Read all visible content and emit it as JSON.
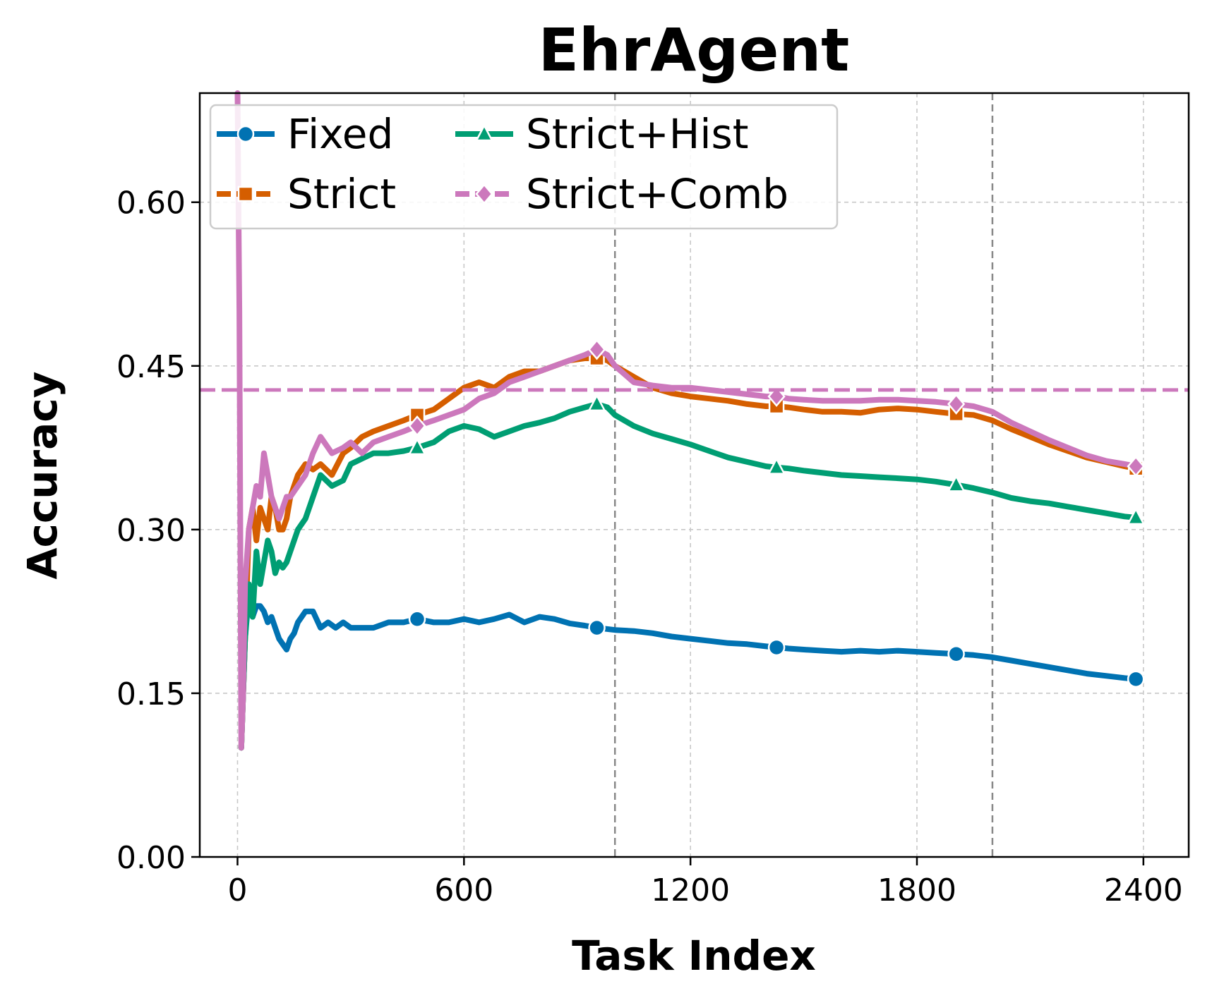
{
  "chart_data": {
    "type": "line",
    "title": "EhrAgent",
    "xlabel": "Task Index",
    "ylabel": "Accuracy",
    "xlim": [
      -100,
      2520
    ],
    "ylim": [
      0,
      0.7
    ],
    "xticks": [
      0,
      600,
      1200,
      1800,
      2400
    ],
    "xtick_labels": [
      "0",
      "600",
      "1200",
      "1800",
      "2400"
    ],
    "yticks": [
      0.0,
      0.15,
      0.3,
      0.45,
      0.6
    ],
    "ytick_labels": [
      "0.00",
      "0.15",
      "0.30",
      "0.45",
      "0.60"
    ],
    "grid": true,
    "vertical_markers": [
      1000,
      2000
    ],
    "reference_line": {
      "y": 0.428,
      "color": "#CC78BC",
      "style": "dashed"
    },
    "legend_position": "top-left",
    "series": [
      {
        "name": "Fixed",
        "color": "#0072B2",
        "marker": "circle",
        "marker_x": [
          476,
          952,
          1428,
          1904,
          2380
        ],
        "x": [
          10,
          20,
          30,
          40,
          50,
          60,
          70,
          80,
          90,
          100,
          110,
          120,
          130,
          140,
          150,
          160,
          170,
          180,
          200,
          220,
          240,
          260,
          280,
          300,
          330,
          360,
          400,
          440,
          476,
          520,
          560,
          600,
          640,
          680,
          720,
          760,
          800,
          840,
          880,
          920,
          952,
          1000,
          1050,
          1100,
          1150,
          1200,
          1250,
          1300,
          1350,
          1400,
          1428,
          1460,
          1500,
          1550,
          1600,
          1650,
          1700,
          1750,
          1800,
          1850,
          1904,
          1950,
          2000,
          2050,
          2100,
          2150,
          2200,
          2250,
          2300,
          2350,
          2380
        ],
        "y": [
          0.1,
          0.2,
          0.24,
          0.22,
          0.23,
          0.23,
          0.225,
          0.215,
          0.22,
          0.21,
          0.2,
          0.195,
          0.19,
          0.2,
          0.205,
          0.215,
          0.22,
          0.225,
          0.225,
          0.21,
          0.215,
          0.21,
          0.215,
          0.21,
          0.21,
          0.21,
          0.215,
          0.215,
          0.218,
          0.215,
          0.215,
          0.218,
          0.215,
          0.218,
          0.222,
          0.215,
          0.22,
          0.218,
          0.214,
          0.212,
          0.21,
          0.208,
          0.207,
          0.205,
          0.202,
          0.2,
          0.198,
          0.196,
          0.195,
          0.193,
          0.192,
          0.191,
          0.19,
          0.189,
          0.188,
          0.189,
          0.188,
          0.189,
          0.188,
          0.187,
          0.186,
          0.185,
          0.183,
          0.18,
          0.177,
          0.174,
          0.171,
          0.168,
          0.166,
          0.164,
          0.163
        ]
      },
      {
        "name": "Strict",
        "color": "#D55E00",
        "marker": "square",
        "marker_x": [
          476,
          952,
          1428,
          1904,
          2380
        ],
        "x": [
          10,
          20,
          30,
          40,
          50,
          60,
          70,
          80,
          90,
          100,
          110,
          120,
          130,
          140,
          160,
          180,
          200,
          220,
          250,
          280,
          300,
          330,
          360,
          400,
          440,
          476,
          520,
          560,
          600,
          640,
          680,
          720,
          760,
          800,
          840,
          880,
          920,
          952,
          980,
          1000,
          1050,
          1100,
          1150,
          1200,
          1250,
          1300,
          1350,
          1400,
          1428,
          1460,
          1500,
          1550,
          1600,
          1650,
          1700,
          1750,
          1800,
          1850,
          1904,
          1950,
          2000,
          2050,
          2100,
          2150,
          2200,
          2250,
          2300,
          2350,
          2380
        ],
        "y": [
          0.1,
          0.2,
          0.3,
          0.32,
          0.29,
          0.32,
          0.31,
          0.3,
          0.33,
          0.32,
          0.3,
          0.3,
          0.31,
          0.33,
          0.35,
          0.36,
          0.355,
          0.36,
          0.35,
          0.37,
          0.375,
          0.385,
          0.39,
          0.395,
          0.4,
          0.405,
          0.41,
          0.42,
          0.43,
          0.435,
          0.43,
          0.44,
          0.445,
          0.445,
          0.45,
          0.455,
          0.457,
          0.457,
          0.455,
          0.45,
          0.44,
          0.43,
          0.425,
          0.422,
          0.42,
          0.418,
          0.415,
          0.413,
          0.413,
          0.412,
          0.41,
          0.408,
          0.408,
          0.407,
          0.41,
          0.411,
          0.41,
          0.408,
          0.406,
          0.405,
          0.4,
          0.392,
          0.385,
          0.378,
          0.372,
          0.366,
          0.362,
          0.358,
          0.356
        ]
      },
      {
        "name": "Strict+Hist",
        "color": "#009E73",
        "marker": "triangle",
        "marker_x": [
          476,
          952,
          1428,
          1904,
          2380
        ],
        "x": [
          10,
          20,
          30,
          40,
          50,
          60,
          70,
          80,
          90,
          100,
          110,
          120,
          130,
          140,
          160,
          180,
          200,
          220,
          250,
          280,
          300,
          330,
          360,
          400,
          440,
          476,
          520,
          560,
          600,
          640,
          680,
          720,
          760,
          800,
          840,
          880,
          920,
          952,
          980,
          1000,
          1050,
          1100,
          1150,
          1200,
          1250,
          1300,
          1350,
          1400,
          1428,
          1460,
          1500,
          1550,
          1600,
          1650,
          1700,
          1750,
          1800,
          1850,
          1904,
          1950,
          2000,
          2050,
          2100,
          2150,
          2200,
          2250,
          2300,
          2350,
          2380
        ],
        "y": [
          0.1,
          0.2,
          0.25,
          0.22,
          0.28,
          0.25,
          0.27,
          0.29,
          0.28,
          0.26,
          0.27,
          0.265,
          0.27,
          0.28,
          0.3,
          0.31,
          0.33,
          0.35,
          0.34,
          0.345,
          0.36,
          0.365,
          0.37,
          0.37,
          0.372,
          0.375,
          0.38,
          0.39,
          0.395,
          0.392,
          0.385,
          0.39,
          0.395,
          0.398,
          0.402,
          0.408,
          0.412,
          0.415,
          0.412,
          0.405,
          0.395,
          0.388,
          0.383,
          0.378,
          0.372,
          0.366,
          0.362,
          0.358,
          0.357,
          0.356,
          0.354,
          0.352,
          0.35,
          0.349,
          0.348,
          0.347,
          0.346,
          0.344,
          0.341,
          0.338,
          0.334,
          0.329,
          0.326,
          0.324,
          0.321,
          0.318,
          0.315,
          0.312,
          0.311
        ]
      },
      {
        "name": "Strict+Comb",
        "color": "#CC78BC",
        "marker": "diamond",
        "marker_x": [
          476,
          952,
          1428,
          1904,
          2380
        ],
        "x": [
          0,
          5,
          10,
          15,
          20,
          30,
          40,
          50,
          60,
          70,
          80,
          90,
          100,
          110,
          120,
          130,
          140,
          160,
          180,
          200,
          220,
          250,
          280,
          300,
          330,
          360,
          400,
          440,
          476,
          520,
          560,
          600,
          640,
          680,
          720,
          760,
          800,
          840,
          880,
          920,
          952,
          980,
          1000,
          1050,
          1100,
          1150,
          1200,
          1250,
          1300,
          1350,
          1400,
          1428,
          1460,
          1500,
          1550,
          1600,
          1650,
          1700,
          1750,
          1800,
          1850,
          1904,
          1950,
          2000,
          2050,
          2100,
          2150,
          2200,
          2250,
          2300,
          2350,
          2380
        ],
        "y": [
          0.7,
          0.5,
          0.1,
          0.15,
          0.25,
          0.3,
          0.32,
          0.34,
          0.33,
          0.37,
          0.35,
          0.33,
          0.32,
          0.31,
          0.32,
          0.33,
          0.33,
          0.34,
          0.35,
          0.37,
          0.385,
          0.37,
          0.375,
          0.38,
          0.37,
          0.38,
          0.385,
          0.39,
          0.395,
          0.4,
          0.405,
          0.41,
          0.42,
          0.425,
          0.435,
          0.44,
          0.445,
          0.45,
          0.455,
          0.46,
          0.465,
          0.46,
          0.45,
          0.435,
          0.432,
          0.43,
          0.43,
          0.428,
          0.426,
          0.424,
          0.422,
          0.422,
          0.42,
          0.419,
          0.418,
          0.418,
          0.418,
          0.419,
          0.419,
          0.418,
          0.417,
          0.415,
          0.413,
          0.408,
          0.398,
          0.39,
          0.382,
          0.375,
          0.368,
          0.363,
          0.36,
          0.358
        ]
      }
    ]
  }
}
